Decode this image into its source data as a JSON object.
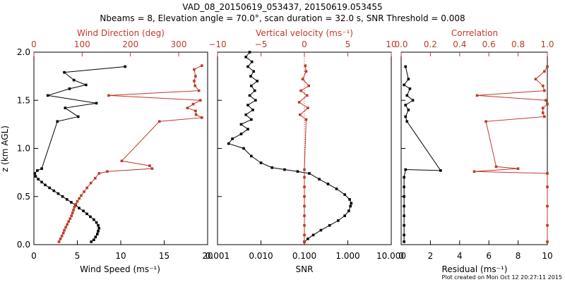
{
  "title": {
    "line1": "VAD_08_20150619_053437, 20150619.053455",
    "line2": "Nbeams = 8, Elevation angle = 70.0°, scan duration = 32.0 s, SNR Threshold = 0.008"
  },
  "footer": "Plot created on Mon Oct 12 20:27:11 2015",
  "colors": {
    "black": "#000000",
    "red": "#c0392b"
  },
  "chart_data": [
    {
      "type": "line",
      "name": "Wind speed and direction",
      "ylabel": "z (km AGL)",
      "ylim": [
        0.0,
        2.0
      ],
      "yticks": [
        "0.0",
        "0.5",
        "1.0",
        "1.5",
        "2.0"
      ],
      "bottom_axis": {
        "label": "Wind Speed (ms⁻¹)",
        "range": [
          0,
          20
        ],
        "ticks": [
          "0",
          "5",
          "10",
          "15",
          "20"
        ]
      },
      "top_axis": {
        "label": "Wind Direction (deg)",
        "range": [
          0,
          360
        ],
        "ticks": [
          "0",
          "100",
          "200",
          "300"
        ]
      },
      "series": [
        {
          "name": "Wind Speed",
          "axis": "bottom",
          "color": "black",
          "points": [
            [
              6.6,
              0.03
            ],
            [
              6.9,
              0.05
            ],
            [
              7.1,
              0.08
            ],
            [
              7.3,
              0.11
            ],
            [
              7.4,
              0.14
            ],
            [
              7.5,
              0.17
            ],
            [
              7.4,
              0.2
            ],
            [
              7.2,
              0.23
            ],
            [
              6.9,
              0.26
            ],
            [
              6.5,
              0.29
            ],
            [
              6.1,
              0.32
            ],
            [
              5.7,
              0.35
            ],
            [
              5.2,
              0.38
            ],
            [
              4.8,
              0.41
            ],
            [
              4.3,
              0.44
            ],
            [
              3.8,
              0.47
            ],
            [
              3.3,
              0.5
            ],
            [
              2.8,
              0.53
            ],
            [
              2.3,
              0.56
            ],
            [
              1.8,
              0.59
            ],
            [
              1.3,
              0.62
            ],
            [
              0.9,
              0.65
            ],
            [
              0.5,
              0.68
            ],
            [
              0.2,
              0.71
            ],
            [
              0.1,
              0.74
            ],
            [
              0.4,
              0.77
            ],
            [
              0.9,
              0.79
            ],
            [
              2.7,
              1.28
            ],
            [
              5.1,
              1.33
            ],
            [
              3.6,
              1.42
            ],
            [
              7.2,
              1.47
            ],
            [
              1.6,
              1.55
            ],
            [
              4.1,
              1.62
            ],
            [
              6.0,
              1.66
            ],
            [
              4.6,
              1.71
            ],
            [
              3.5,
              1.79
            ],
            [
              10.5,
              1.85
            ]
          ]
        },
        {
          "name": "Wind Direction",
          "axis": "top",
          "color": "red",
          "points": [
            [
              52,
              0.03
            ],
            [
              55,
              0.06
            ],
            [
              58,
              0.09
            ],
            [
              61,
              0.12
            ],
            [
              63,
              0.15
            ],
            [
              66,
              0.18
            ],
            [
              69,
              0.21
            ],
            [
              72,
              0.24
            ],
            [
              75,
              0.27
            ],
            [
              78,
              0.3
            ],
            [
              80,
              0.33
            ],
            [
              82,
              0.36
            ],
            [
              84,
              0.39
            ],
            [
              87,
              0.42
            ],
            [
              90,
              0.45
            ],
            [
              94,
              0.48
            ],
            [
              98,
              0.51
            ],
            [
              104,
              0.55
            ],
            [
              110,
              0.59
            ],
            [
              118,
              0.64
            ],
            [
              127,
              0.69
            ],
            [
              135,
              0.74
            ],
            [
              152,
              0.76
            ],
            [
              245,
              0.79
            ],
            [
              240,
              0.82
            ],
            [
              182,
              0.87
            ],
            [
              260,
              1.28
            ],
            [
              348,
              1.32
            ],
            [
              336,
              1.35
            ],
            [
              335,
              1.39
            ],
            [
              318,
              1.42
            ],
            [
              330,
              1.46
            ],
            [
              345,
              1.5
            ],
            [
              155,
              1.55
            ],
            [
              342,
              1.6
            ],
            [
              334,
              1.65
            ],
            [
              332,
              1.7
            ],
            [
              335,
              1.75
            ],
            [
              332,
              1.82
            ],
            [
              348,
              1.86
            ]
          ]
        }
      ]
    },
    {
      "type": "line",
      "name": "SNR and vertical velocity",
      "bottom_axis": {
        "label": "SNR",
        "scale": "log",
        "range": [
          0.001,
          10.0
        ],
        "ticks": [
          "0.001",
          "0.010",
          "0.100",
          "1.000",
          "10.000"
        ]
      },
      "top_axis": {
        "label": "Vertical velocity (ms⁻¹)",
        "range": [
          -10,
          10
        ],
        "ticks": [
          "−10",
          "−5",
          "0",
          "5",
          "10"
        ]
      },
      "series": [
        {
          "name": "SNR",
          "axis": "bottom",
          "color": "black",
          "points": [
            [
              0.1,
              0.03
            ],
            [
              0.12,
              0.06
            ],
            [
              0.16,
              0.1
            ],
            [
              0.24,
              0.15
            ],
            [
              0.38,
              0.2
            ],
            [
              0.6,
              0.25
            ],
            [
              0.85,
              0.3
            ],
            [
              1.05,
              0.35
            ],
            [
              1.15,
              0.4
            ],
            [
              1.2,
              0.43
            ],
            [
              1.1,
              0.47
            ],
            [
              0.85,
              0.52
            ],
            [
              0.55,
              0.58
            ],
            [
              0.35,
              0.63
            ],
            [
              0.22,
              0.68
            ],
            [
              0.13,
              0.74
            ],
            [
              0.07,
              0.76
            ],
            [
              0.035,
              0.78
            ],
            [
              0.018,
              0.8
            ],
            [
              0.01,
              0.85
            ],
            [
              0.006,
              0.92
            ],
            [
              0.004,
              1.0
            ],
            [
              0.0018,
              1.05
            ],
            [
              0.0022,
              1.1
            ],
            [
              0.0035,
              1.15
            ],
            [
              0.005,
              1.2
            ],
            [
              0.0035,
              1.25
            ],
            [
              0.006,
              1.3
            ],
            [
              0.0045,
              1.35
            ],
            [
              0.0065,
              1.4
            ],
            [
              0.005,
              1.45
            ],
            [
              0.0075,
              1.5
            ],
            [
              0.0055,
              1.55
            ],
            [
              0.0072,
              1.6
            ],
            [
              0.006,
              1.65
            ],
            [
              0.0082,
              1.7
            ],
            [
              0.0058,
              1.75
            ],
            [
              0.0068,
              1.8
            ],
            [
              0.005,
              1.85
            ],
            [
              0.0062,
              1.9
            ],
            [
              0.0045,
              1.95
            ],
            [
              0.0055,
              2.0
            ]
          ]
        },
        {
          "name": "Vertical velocity",
          "axis": "top",
          "color": "red",
          "points": [
            [
              0,
              0.03
            ],
            [
              0,
              0.1
            ],
            [
              0,
              0.2
            ],
            [
              0,
              0.3
            ],
            [
              0,
              0.4
            ],
            [
              0,
              0.5
            ],
            [
              0,
              0.6
            ],
            [
              0,
              0.7
            ],
            [
              0,
              0.78
            ],
            [
              0.2,
              1.3
            ],
            [
              -0.5,
              1.35
            ],
            [
              0.4,
              1.42
            ],
            [
              -0.6,
              1.48
            ],
            [
              0.3,
              1.55
            ],
            [
              -0.4,
              1.6
            ],
            [
              0.5,
              1.65
            ],
            [
              -0.2,
              1.72
            ],
            [
              0.2,
              1.8
            ],
            [
              0.1,
              1.86
            ]
          ]
        }
      ],
      "reference_line": {
        "axis": "top",
        "value": 0,
        "style": "dotted",
        "color": "red"
      }
    },
    {
      "type": "line",
      "name": "Residual and correlation",
      "bottom_axis": {
        "label": "Residual (ms⁻¹)",
        "range": [
          0,
          10
        ],
        "ticks": [
          "0",
          "2",
          "4",
          "6",
          "8",
          "10"
        ]
      },
      "top_axis": {
        "label": "Correlation",
        "range": [
          0.0,
          1.0
        ],
        "ticks": [
          "0.0",
          "0.2",
          "0.4",
          "0.6",
          "0.8",
          "1.0"
        ]
      },
      "series": [
        {
          "name": "Residual",
          "axis": "bottom",
          "color": "black",
          "points": [
            [
              0.2,
              0.03
            ],
            [
              0.2,
              0.1
            ],
            [
              0.2,
              0.2
            ],
            [
              0.2,
              0.3
            ],
            [
              0.2,
              0.4
            ],
            [
              0.2,
              0.5
            ],
            [
              0.2,
              0.6
            ],
            [
              0.2,
              0.7
            ],
            [
              0.3,
              0.78
            ],
            [
              2.7,
              0.77
            ],
            [
              0.4,
              1.28
            ],
            [
              0.3,
              1.33
            ],
            [
              0.5,
              1.4
            ],
            [
              0.3,
              1.45
            ],
            [
              0.8,
              1.5
            ],
            [
              0.4,
              1.55
            ],
            [
              0.6,
              1.62
            ],
            [
              0.2,
              1.66
            ],
            [
              0.5,
              1.72
            ],
            [
              0.3,
              1.85
            ]
          ]
        },
        {
          "name": "Correlation",
          "axis": "top",
          "color": "red",
          "points": [
            [
              1.0,
              0.03
            ],
            [
              1.0,
              0.2
            ],
            [
              1.0,
              0.4
            ],
            [
              1.0,
              0.6
            ],
            [
              1.0,
              0.74
            ],
            [
              0.5,
              0.76
            ],
            [
              0.8,
              0.79
            ],
            [
              0.65,
              0.81
            ],
            [
              0.58,
              1.28
            ],
            [
              0.98,
              1.33
            ],
            [
              0.97,
              1.37
            ],
            [
              0.97,
              1.42
            ],
            [
              1.0,
              1.46
            ],
            [
              0.99,
              1.5
            ],
            [
              0.52,
              1.55
            ],
            [
              0.98,
              1.6
            ],
            [
              0.97,
              1.65
            ],
            [
              0.92,
              1.72
            ],
            [
              0.98,
              1.8
            ],
            [
              1.0,
              1.85
            ]
          ]
        }
      ]
    }
  ]
}
